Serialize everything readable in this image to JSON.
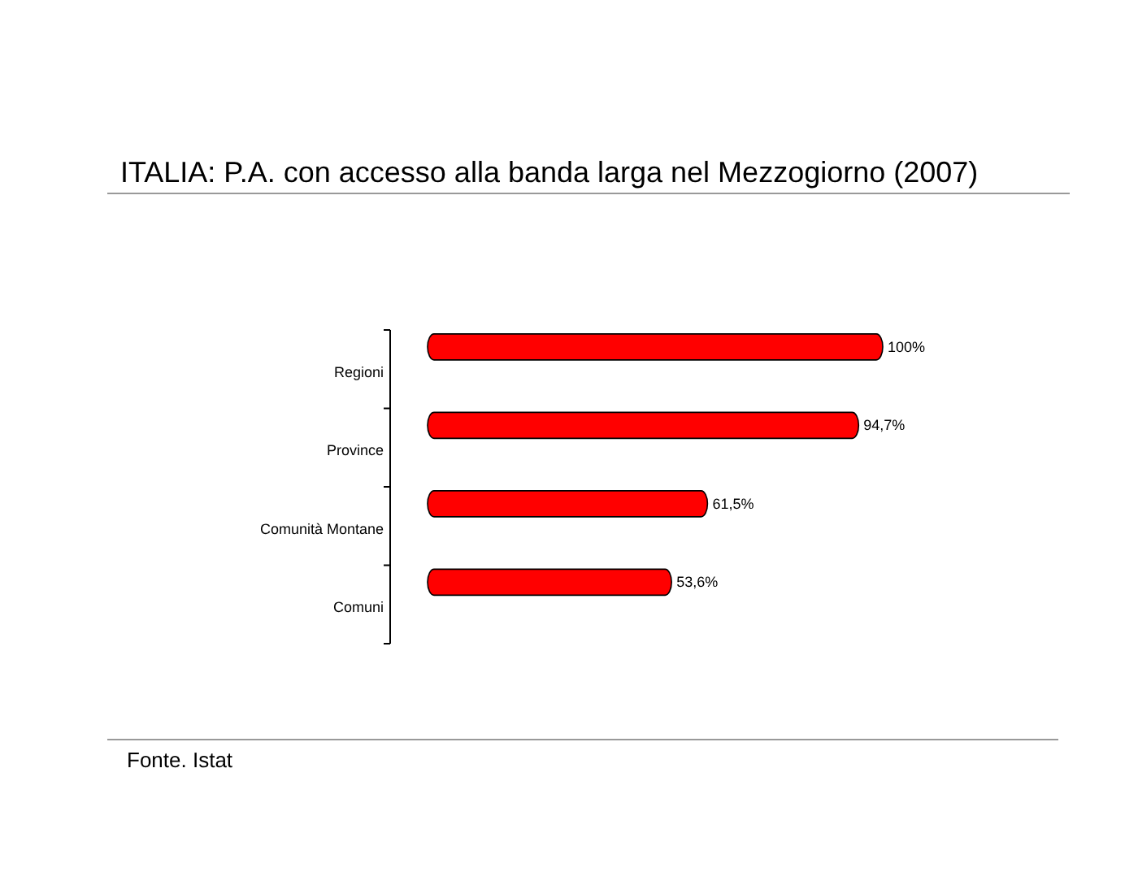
{
  "chart_data": {
    "type": "bar",
    "orientation": "horizontal",
    "title": "ITALIA: P.A. con accesso alla banda larga nel Mezzogiorno (2007)",
    "categories": [
      "Regioni",
      "Province",
      "Comunità Montane",
      "Comuni"
    ],
    "values": [
      100,
      94.7,
      61.5,
      53.6
    ],
    "value_labels": [
      "100%",
      "94,7%",
      "61,5%",
      "53,6%"
    ],
    "color": "#ff0000",
    "annotations": [
      "Fonte. Istat"
    ]
  }
}
